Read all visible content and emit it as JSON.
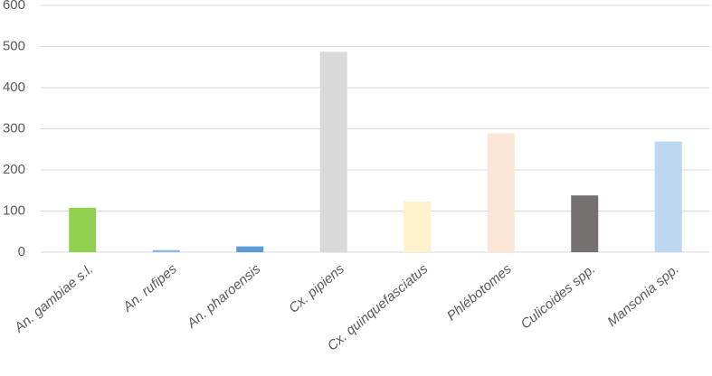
{
  "chart_data": {
    "type": "bar",
    "categories": [
      "An. gambiae s.l.",
      "An. rufipes",
      "An. pharoensis",
      "Cx. pipiens",
      "Cx. quinquefasciatus",
      "Phlébotomes",
      "Culicoides spp.",
      "Mansonia spp."
    ],
    "values": [
      108,
      5,
      14,
      487,
      123,
      289,
      138,
      269
    ],
    "colors": [
      "#92d050",
      "#8db4e2",
      "#5b9bd5",
      "#d9d9d9",
      "#fff2cc",
      "#fbe5d6",
      "#767171",
      "#bdd7ee"
    ],
    "ylim": [
      0,
      600
    ],
    "yticks": [
      0,
      100,
      200,
      300,
      400,
      500,
      600
    ],
    "grid": true
  }
}
